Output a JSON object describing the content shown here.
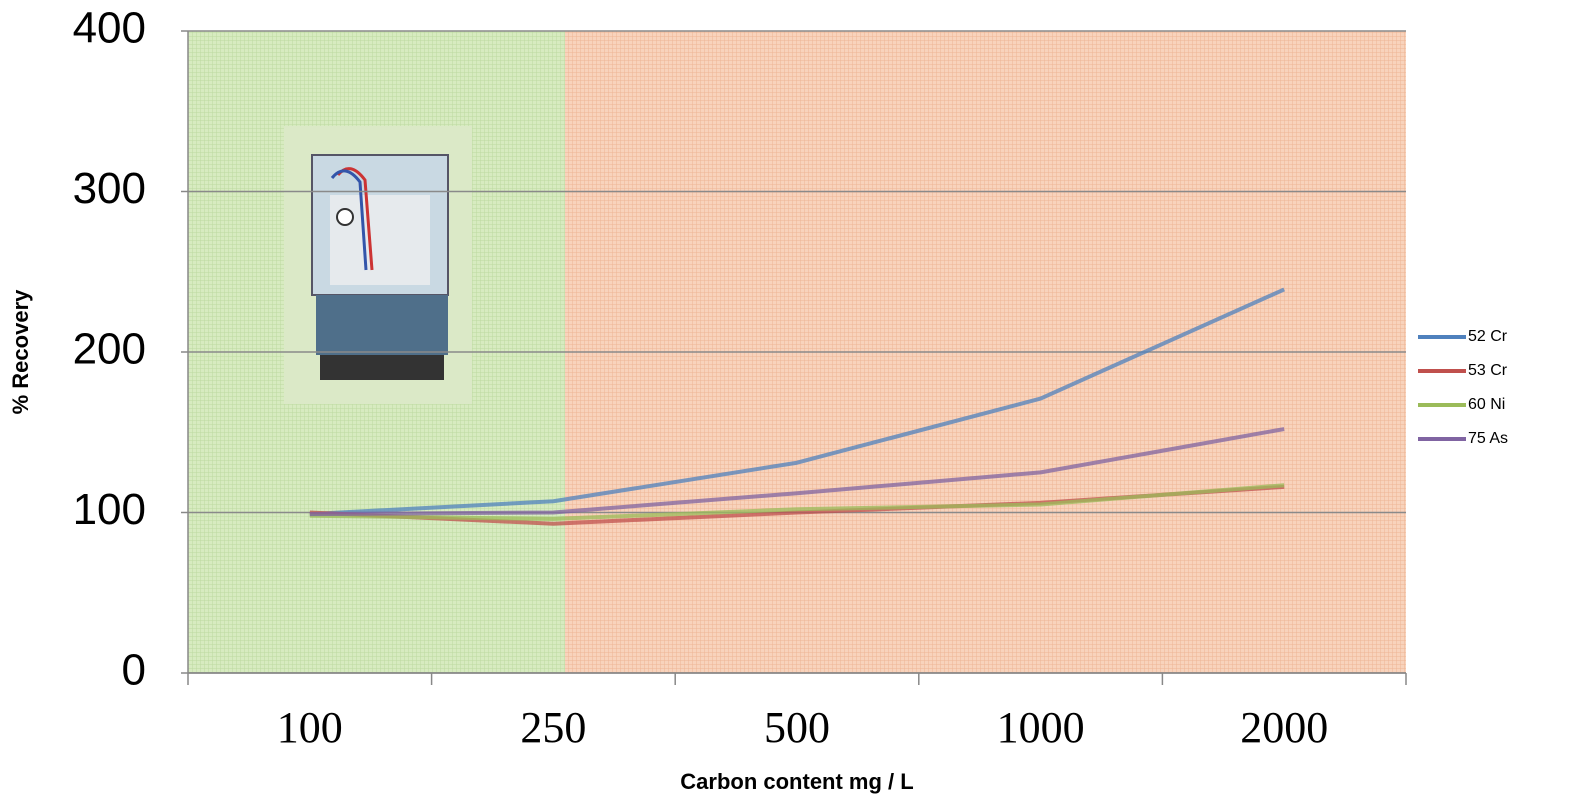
{
  "chart_data": {
    "type": "line",
    "x_label": "Carbon content mg / L",
    "y_label": "% Recovery",
    "categories": [
      "100",
      "250",
      "500",
      "1000",
      "2000"
    ],
    "series": [
      {
        "name": "52 Cr",
        "color": "#4f81bd",
        "values": [
          99,
          107,
          131,
          171,
          239
        ]
      },
      {
        "name": "53 Cr",
        "color": "#c0504d",
        "values": [
          100,
          93,
          100,
          106,
          116
        ]
      },
      {
        "name": "60 Ni",
        "color": "#9bbb59",
        "values": [
          98,
          96,
          102,
          105,
          117
        ]
      },
      {
        "name": "75 As",
        "color": "#8064a2",
        "values": [
          99,
          100,
          112,
          125,
          152
        ]
      }
    ],
    "ylim": [
      0,
      400
    ],
    "yticks": [
      0,
      100,
      200,
      300,
      400
    ],
    "grid": true,
    "legend": "right"
  }
}
